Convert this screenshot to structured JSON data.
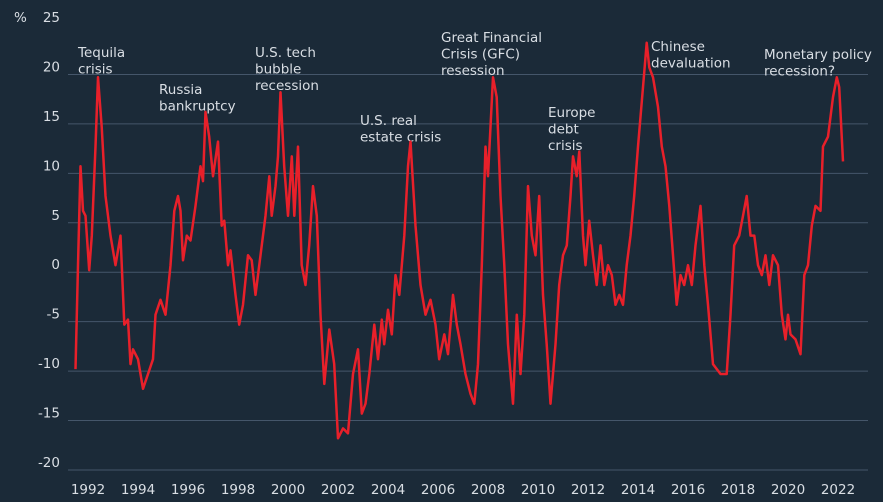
{
  "chart_data": {
    "type": "line",
    "y_unit": "%",
    "xlim": [
      1991,
      2023
    ],
    "xticks": [
      1992,
      1994,
      1996,
      1998,
      2000,
      2002,
      2004,
      2006,
      2008,
      2010,
      2012,
      2014,
      2016,
      2018,
      2020,
      2022
    ],
    "ylim": [
      -20,
      25
    ],
    "yticks": [
      -20,
      -15,
      -10,
      -5,
      0,
      5,
      10,
      15,
      20,
      25
    ],
    "grid": true,
    "annotations": [
      [
        "Tequila",
        "crisis"
      ],
      [
        "Russia",
        "bankruptcy"
      ],
      [
        "U.S. tech",
        "bubble",
        "recession"
      ],
      [
        "U.S. real",
        "estate crisis"
      ],
      [
        "Great Financial",
        "Crisis (GFC)",
        "resession"
      ],
      [
        "Europe",
        "debt",
        "crisis"
      ],
      [
        "Chinese",
        "devaluation"
      ],
      [
        "Monetary policy",
        "recession?"
      ]
    ],
    "series": [
      {
        "color": "#e8202a",
        "x": [
          1991.5,
          1991.6,
          1991.7,
          1991.8,
          1991.9,
          1992.05,
          1992.15,
          1992.3,
          1992.4,
          1992.55,
          1992.7,
          1992.9,
          1993.1,
          1993.3,
          1993.45,
          1993.6,
          1993.7,
          1993.8,
          1994.0,
          1994.2,
          1994.4,
          1994.6,
          1994.7,
          1994.9,
          1995.1,
          1995.3,
          1995.45,
          1995.6,
          1995.7,
          1995.8,
          1995.95,
          1996.1,
          1996.3,
          1996.5,
          1996.6,
          1996.7,
          1996.85,
          1997.0,
          1997.2,
          1997.35,
          1997.45,
          1997.6,
          1997.7,
          1997.9,
          1998.05,
          1998.2,
          1998.4,
          1998.55,
          1998.7,
          1998.9,
          1999.1,
          1999.25,
          1999.35,
          1999.5,
          1999.6,
          1999.7,
          1999.85,
          2000.0,
          2000.15,
          2000.25,
          2000.4,
          2000.55,
          2000.7,
          2000.85,
          2001.0,
          2001.15,
          2001.3,
          2001.45,
          2001.65,
          2001.85,
          2002.0,
          2002.2,
          2002.4,
          2002.6,
          2002.8,
          2002.95,
          2003.1,
          2003.25,
          2003.45,
          2003.6,
          2003.75,
          2003.85,
          2004.0,
          2004.15,
          2004.3,
          2004.45,
          2004.65,
          2004.8,
          2004.9,
          2005.1,
          2005.3,
          2005.5,
          2005.7,
          2005.9,
          2006.05,
          2006.25,
          2006.4,
          2006.6,
          2006.75,
          2006.9,
          2007.1,
          2007.3,
          2007.45,
          2007.6,
          2007.75,
          2007.9,
          2008.0,
          2008.2,
          2008.35,
          2008.5,
          2008.65,
          2008.8,
          2009.0,
          2009.15,
          2009.3,
          2009.45,
          2009.6,
          2009.75,
          2009.9,
          2010.05,
          2010.2,
          2010.35,
          2010.5,
          2010.7,
          2010.85,
          2011.0,
          2011.15,
          2011.3,
          2011.4,
          2011.55,
          2011.65,
          2011.8,
          2011.9,
          2012.05,
          2012.2,
          2012.35,
          2012.5,
          2012.65,
          2012.8,
          2012.95,
          2013.1,
          2013.25,
          2013.4,
          2013.55,
          2013.7,
          2013.85,
          2014.0,
          2014.2,
          2014.35,
          2014.45,
          2014.6,
          2014.8,
          2014.95,
          2015.1,
          2015.25,
          2015.4,
          2015.55,
          2015.7,
          2015.85,
          2016.0,
          2016.15,
          2016.3,
          2016.5,
          2016.65,
          2016.8,
          2017.0,
          2017.3,
          2017.55,
          2017.7,
          2017.85,
          2018.05,
          2018.2,
          2018.35,
          2018.5,
          2018.65,
          2018.8,
          2018.95,
          2019.1,
          2019.25,
          2019.4,
          2019.6,
          2019.75,
          2019.9,
          2020.0,
          2020.1,
          2020.3,
          2020.5,
          2020.65,
          2020.8,
          2020.95,
          2021.1,
          2021.3,
          2021.4,
          2021.6,
          2021.8,
          2021.95,
          2022.05,
          2022.2
        ],
        "values": [
          -10.5,
          0,
          10,
          5.5,
          5,
          -0.5,
          3,
          12,
          19,
          14,
          7,
          3,
          0,
          3,
          -6,
          -5.5,
          -10,
          -8.5,
          -9.5,
          -12.5,
          -11,
          -9.5,
          -5,
          -3.5,
          -5,
          0,
          5.5,
          7,
          5.5,
          0.5,
          3,
          2.5,
          6,
          10,
          8.5,
          15.5,
          13,
          9,
          12.5,
          4,
          4.5,
          0,
          1.5,
          -3,
          -6,
          -4,
          1,
          0.5,
          -3,
          1,
          5,
          9,
          5,
          8,
          11,
          17.5,
          10,
          5,
          11,
          5,
          12,
          0,
          -2,
          2,
          8,
          5,
          -5,
          -12,
          -6.5,
          -10,
          -17.5,
          -16.5,
          -17,
          -11,
          -8.5,
          -15,
          -14,
          -11,
          -6,
          -9.5,
          -5.5,
          -8,
          -4.5,
          -7,
          -1,
          -3,
          3,
          10,
          12.5,
          4,
          -2,
          -5,
          -3.5,
          -6,
          -9.5,
          -7,
          -9,
          -3,
          -6,
          -8,
          -11,
          -13,
          -14,
          -10,
          0,
          12,
          9,
          19,
          17,
          7,
          0,
          -8,
          -14,
          -5,
          -11,
          -5,
          8,
          3,
          1,
          7,
          -3,
          -8,
          -14,
          -8,
          -2,
          1,
          2,
          7,
          11,
          9,
          11.5,
          3,
          0,
          4.5,
          1,
          -2,
          2,
          -2,
          0,
          -1,
          -4,
          -3,
          -4,
          0,
          3,
          7,
          12,
          18,
          22.5,
          20,
          19,
          16,
          12,
          10,
          6,
          1,
          -4,
          -1,
          -2,
          0,
          -2,
          2,
          6,
          0,
          -4,
          -10,
          -11,
          -11,
          -5,
          2,
          3,
          5,
          7,
          3,
          3,
          0,
          -1,
          1,
          -2,
          1,
          0,
          -5,
          -7.5,
          -5,
          -7,
          -7.5,
          -9,
          -1,
          0,
          4,
          6,
          5.5,
          12,
          13,
          17,
          19,
          18,
          10.5
        ]
      }
    ]
  }
}
